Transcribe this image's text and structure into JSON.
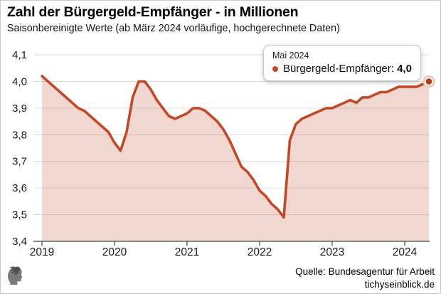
{
  "header": {
    "title": "Zahl der Bürgergeld-Empfänger - in Millionen",
    "subtitle": "Saisonbereinigte Werte (ab März 2024 vorläufige, hochgerechnete Daten)"
  },
  "tooltip": {
    "date": "Mai 2024",
    "series_label": "Bürgergeld-Empfänger:",
    "value": "4,0"
  },
  "footer": {
    "source": "Quelle: Bundesagentur für Arbeit",
    "site": "tichyseinblick.de",
    "logo_icon": "laurel-head-profile"
  },
  "colors": {
    "line": "#c04a27",
    "fill": "rgba(192,74,39,0.22)",
    "grid": "#dcdcdc",
    "axis": "#3f3f3f",
    "marker_inner": "#b23a19",
    "marker_halo": "#f3c3b0",
    "logo_gray": "#7a7a7a"
  },
  "chart_data": {
    "type": "area",
    "title": "Zahl der Bürgergeld-Empfänger - in Millionen",
    "x_frequency": "monthly",
    "x_start": "2019-01",
    "x_end": "2024-05",
    "x_tick_labels": [
      "2019",
      "2020",
      "2021",
      "2022",
      "2023",
      "2024"
    ],
    "y_tick_labels": [
      "3,4",
      "3,5",
      "3,6",
      "3,7",
      "3,8",
      "3,9",
      "4,0",
      "4,1"
    ],
    "ylim": [
      3.4,
      4.1
    ],
    "grid": true,
    "legend_position": "tooltip-top-right",
    "series": [
      {
        "name": "Bürgergeld-Empfänger",
        "values": [
          4.02,
          4.0,
          3.98,
          3.96,
          3.94,
          3.92,
          3.9,
          3.89,
          3.87,
          3.85,
          3.83,
          3.81,
          3.77,
          3.74,
          3.81,
          3.94,
          4.0,
          4.0,
          3.97,
          3.93,
          3.9,
          3.87,
          3.86,
          3.87,
          3.88,
          3.9,
          3.9,
          3.89,
          3.87,
          3.85,
          3.82,
          3.78,
          3.73,
          3.68,
          3.66,
          3.63,
          3.59,
          3.57,
          3.54,
          3.52,
          3.49,
          3.78,
          3.84,
          3.86,
          3.87,
          3.88,
          3.89,
          3.9,
          3.9,
          3.91,
          3.92,
          3.93,
          3.92,
          3.94,
          3.94,
          3.95,
          3.96,
          3.96,
          3.97,
          3.98,
          3.98,
          3.98,
          3.98,
          3.99,
          4.0
        ]
      }
    ],
    "annotations": {
      "end_point": {
        "x": "Mai 2024",
        "value_label": "4,0",
        "value": 4.0
      }
    }
  }
}
